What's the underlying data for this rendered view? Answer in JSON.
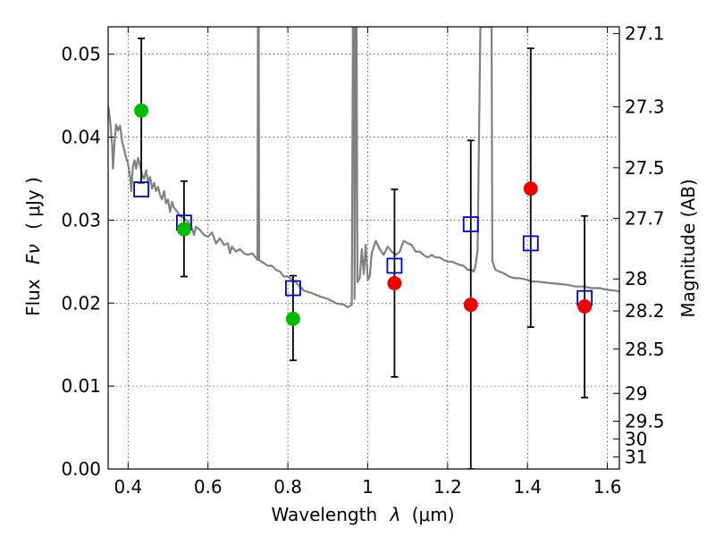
{
  "chart_data": {
    "type": "scatter",
    "title": "",
    "xlabel_main": "Wavelength",
    "xlabel_symbol": "λ",
    "xlabel_unit": "(μm)",
    "ylabel_main": "Flux",
    "ylabel_symbol": "Fν",
    "ylabel_unit": "( μJy )",
    "y2label": "Magnitude (AB)",
    "xlim": [
      0.35,
      1.63
    ],
    "ylim": [
      0.0,
      0.0533
    ],
    "grid": true,
    "xticks": [
      0.4,
      0.6,
      0.8,
      1.0,
      1.2,
      1.4,
      1.6
    ],
    "xtick_labels": [
      "0.4",
      "0.6",
      "0.8",
      "1",
      "1.2",
      "1.4",
      "1.6"
    ],
    "yticks": [
      0.0,
      0.01,
      0.02,
      0.03,
      0.04,
      0.05
    ],
    "ytick_labels": [
      "0.00",
      "0.01",
      "0.02",
      "0.03",
      "0.04",
      "0.05"
    ],
    "y2ticks": [
      {
        "label": "27.1",
        "mag": 27.1
      },
      {
        "label": "27.3",
        "mag": 27.3
      },
      {
        "label": "27.5",
        "mag": 27.5
      },
      {
        "label": "27.7",
        "mag": 27.7
      },
      {
        "label": "28",
        "mag": 28.0
      },
      {
        "label": "28.2",
        "mag": 28.2
      },
      {
        "label": "28.5",
        "mag": 28.5
      },
      {
        "label": "29",
        "mag": 29.0
      },
      {
        "label": "29.5",
        "mag": 29.5
      },
      {
        "label": "30",
        "mag": 30.0
      },
      {
        "label": "31",
        "mag": 31.0
      }
    ],
    "series": [
      {
        "name": "model_sed",
        "kind": "line",
        "color": "#808080",
        "points": [
          [
            0.35,
            0.0438
          ],
          [
            0.355,
            0.042
          ],
          [
            0.36,
            0.039
          ],
          [
            0.362,
            0.0362
          ],
          [
            0.366,
            0.0395
          ],
          [
            0.37,
            0.0415
          ],
          [
            0.375,
            0.0408
          ],
          [
            0.38,
            0.0414
          ],
          [
            0.385,
            0.0395
          ],
          [
            0.39,
            0.0385
          ],
          [
            0.395,
            0.0375
          ],
          [
            0.4,
            0.0368
          ],
          [
            0.405,
            0.0352
          ],
          [
            0.408,
            0.0335
          ],
          [
            0.412,
            0.0365
          ],
          [
            0.416,
            0.0372
          ],
          [
            0.42,
            0.0362
          ],
          [
            0.425,
            0.0375
          ],
          [
            0.43,
            0.0365
          ],
          [
            0.435,
            0.0355
          ],
          [
            0.44,
            0.035
          ],
          [
            0.445,
            0.036
          ],
          [
            0.45,
            0.0345
          ],
          [
            0.455,
            0.0352
          ],
          [
            0.46,
            0.0338
          ],
          [
            0.465,
            0.0345
          ],
          [
            0.47,
            0.0335
          ],
          [
            0.475,
            0.034
          ],
          [
            0.48,
            0.033
          ],
          [
            0.485,
            0.0325
          ],
          [
            0.49,
            0.0335
          ],
          [
            0.495,
            0.032
          ],
          [
            0.5,
            0.0325
          ],
          [
            0.505,
            0.031
          ],
          [
            0.51,
            0.0322
          ],
          [
            0.515,
            0.0315
          ],
          [
            0.52,
            0.0312
          ],
          [
            0.53,
            0.0305
          ],
          [
            0.54,
            0.0302
          ],
          [
            0.55,
            0.0298
          ],
          [
            0.56,
            0.029
          ],
          [
            0.565,
            0.0282
          ],
          [
            0.57,
            0.0292
          ],
          [
            0.58,
            0.0288
          ],
          [
            0.59,
            0.0282
          ],
          [
            0.6,
            0.028
          ],
          [
            0.61,
            0.0285
          ],
          [
            0.62,
            0.0272
          ],
          [
            0.63,
            0.0278
          ],
          [
            0.64,
            0.027
          ],
          [
            0.65,
            0.0272
          ],
          [
            0.655,
            0.026
          ],
          [
            0.66,
            0.0268
          ],
          [
            0.67,
            0.0262
          ],
          [
            0.68,
            0.0265
          ],
          [
            0.69,
            0.026
          ],
          [
            0.7,
            0.0258
          ],
          [
            0.71,
            0.026
          ],
          [
            0.72,
            0.0255
          ],
          [
            0.724,
            0.0252
          ],
          [
            0.725,
            0.0533
          ],
          [
            0.727,
            0.0533
          ],
          [
            0.728,
            0.0252
          ],
          [
            0.74,
            0.0248
          ],
          [
            0.75,
            0.0245
          ],
          [
            0.76,
            0.0245
          ],
          [
            0.77,
            0.024
          ],
          [
            0.78,
            0.0238
          ],
          [
            0.79,
            0.0232
          ],
          [
            0.8,
            0.0232
          ],
          [
            0.82,
            0.0225
          ],
          [
            0.84,
            0.0215
          ],
          [
            0.86,
            0.0212
          ],
          [
            0.88,
            0.0208
          ],
          [
            0.9,
            0.0205
          ],
          [
            0.92,
            0.02
          ],
          [
            0.94,
            0.0198
          ],
          [
            0.95,
            0.0195
          ],
          [
            0.96,
            0.0198
          ],
          [
            0.963,
            0.0533
          ],
          [
            0.966,
            0.0533
          ],
          [
            0.967,
            0.0205
          ],
          [
            0.97,
            0.0533
          ],
          [
            0.972,
            0.0533
          ],
          [
            0.974,
            0.0225
          ],
          [
            0.98,
            0.023
          ],
          [
            0.985,
            0.0265
          ],
          [
            0.99,
            0.0235
          ],
          [
            0.995,
            0.027
          ],
          [
            1.0,
            0.0228
          ],
          [
            1.005,
            0.0232
          ],
          [
            1.01,
            0.026
          ],
          [
            1.02,
            0.0275
          ],
          [
            1.03,
            0.0265
          ],
          [
            1.04,
            0.0258
          ],
          [
            1.05,
            0.0268
          ],
          [
            1.06,
            0.0262
          ],
          [
            1.07,
            0.0258
          ],
          [
            1.08,
            0.0262
          ],
          [
            1.09,
            0.0275
          ],
          [
            1.1,
            0.0272
          ],
          [
            1.11,
            0.027
          ],
          [
            1.12,
            0.0262
          ],
          [
            1.13,
            0.0262
          ],
          [
            1.14,
            0.0258
          ],
          [
            1.15,
            0.0255
          ],
          [
            1.16,
            0.0258
          ],
          [
            1.17,
            0.0255
          ],
          [
            1.18,
            0.0255
          ],
          [
            1.19,
            0.0252
          ],
          [
            1.2,
            0.025
          ],
          [
            1.21,
            0.025
          ],
          [
            1.22,
            0.0248
          ],
          [
            1.23,
            0.0246
          ],
          [
            1.24,
            0.0245
          ],
          [
            1.25,
            0.024
          ],
          [
            1.26,
            0.024
          ],
          [
            1.265,
            0.0238
          ],
          [
            1.27,
            0.0245
          ],
          [
            1.275,
            0.0265
          ],
          [
            1.282,
            0.0533
          ],
          [
            1.3,
            0.0533
          ],
          [
            1.31,
            0.0533
          ],
          [
            1.312,
            0.025
          ],
          [
            1.32,
            0.024
          ],
          [
            1.33,
            0.0238
          ],
          [
            1.34,
            0.0236
          ],
          [
            1.35,
            0.0233
          ],
          [
            1.36,
            0.0231
          ],
          [
            1.37,
            0.023
          ],
          [
            1.38,
            0.023
          ],
          [
            1.39,
            0.0229
          ],
          [
            1.4,
            0.0228
          ],
          [
            1.41,
            0.0226
          ],
          [
            1.42,
            0.0226
          ],
          [
            1.44,
            0.0225
          ],
          [
            1.46,
            0.0224
          ],
          [
            1.48,
            0.0223
          ],
          [
            1.5,
            0.0222
          ],
          [
            1.52,
            0.022
          ],
          [
            1.54,
            0.022
          ],
          [
            1.56,
            0.0218
          ],
          [
            1.58,
            0.0218
          ],
          [
            1.6,
            0.0216
          ],
          [
            1.62,
            0.0215
          ],
          [
            1.63,
            0.0214
          ]
        ]
      },
      {
        "name": "model_photometry",
        "kind": "open-square",
        "color": "#0000cc",
        "points": [
          [
            0.433,
            0.0337
          ],
          [
            0.54,
            0.0297
          ],
          [
            0.813,
            0.0218
          ],
          [
            1.067,
            0.0245
          ],
          [
            1.258,
            0.0295
          ],
          [
            1.408,
            0.0272
          ],
          [
            1.543,
            0.0206
          ]
        ]
      },
      {
        "name": "detections",
        "kind": "filled-circle",
        "color": "#00bb00",
        "points": [
          [
            0.433,
            0.0432
          ],
          [
            0.54,
            0.0289
          ],
          [
            0.813,
            0.0181
          ]
        ]
      },
      {
        "name": "upper_limits",
        "kind": "filled-circle",
        "color": "#ee0000",
        "points": [
          [
            1.067,
            0.0224
          ],
          [
            1.258,
            0.0198
          ],
          [
            1.408,
            0.0338
          ],
          [
            1.543,
            0.0196
          ]
        ]
      },
      {
        "name": "error_bars",
        "kind": "errorbar",
        "color": "#000000",
        "bars": [
          {
            "x": 0.433,
            "low": 0.0345,
            "high": 0.0519
          },
          {
            "x": 0.54,
            "low": 0.0232,
            "high": 0.0347
          },
          {
            "x": 0.813,
            "low": 0.0131,
            "high": 0.0233
          },
          {
            "x": 1.067,
            "low": 0.0111,
            "high": 0.0337
          },
          {
            "x": 1.258,
            "low": 0.0,
            "high": 0.0396
          },
          {
            "x": 1.408,
            "low": 0.0171,
            "high": 0.0507
          },
          {
            "x": 1.543,
            "low": 0.0086,
            "high": 0.0305
          }
        ]
      }
    ]
  }
}
